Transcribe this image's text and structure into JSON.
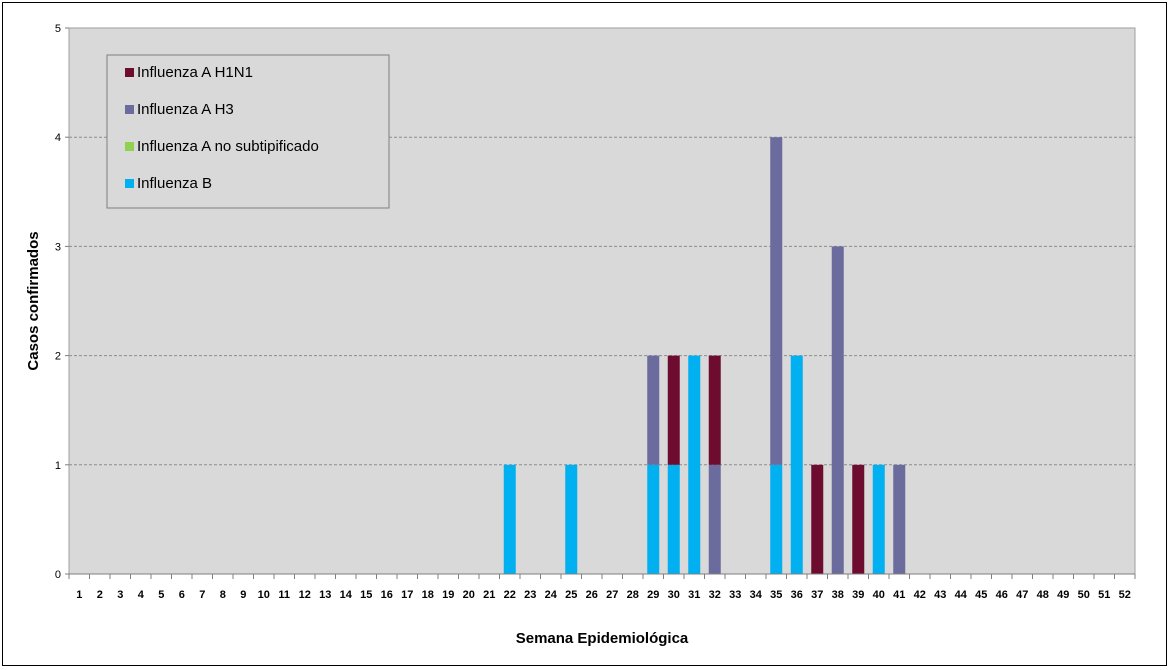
{
  "chart_data": {
    "type": "bar",
    "stacked": true,
    "title": "",
    "xlabel": "Semana Epidemiológica",
    "ylabel": "Casos confirmados",
    "ylim": [
      0,
      5
    ],
    "yticks": [
      0,
      1,
      2,
      3,
      4,
      5
    ],
    "grid": true,
    "legend_position": "top-left",
    "categories": [
      "1",
      "2",
      "3",
      "4",
      "5",
      "6",
      "7",
      "8",
      "9",
      "10",
      "11",
      "12",
      "13",
      "14",
      "15",
      "16",
      "17",
      "18",
      "19",
      "20",
      "21",
      "22",
      "23",
      "24",
      "25",
      "26",
      "27",
      "28",
      "29",
      "30",
      "31",
      "32",
      "33",
      "34",
      "35",
      "36",
      "37",
      "38",
      "39",
      "40",
      "41",
      "42",
      "43",
      "44",
      "45",
      "46",
      "47",
      "48",
      "49",
      "50",
      "51",
      "52"
    ],
    "series": [
      {
        "name": "Influenza B",
        "color": "#00B0F0",
        "values": [
          0,
          0,
          0,
          0,
          0,
          0,
          0,
          0,
          0,
          0,
          0,
          0,
          0,
          0,
          0,
          0,
          0,
          0,
          0,
          0,
          0,
          1,
          0,
          0,
          1,
          0,
          0,
          0,
          1,
          1,
          2,
          0,
          0,
          0,
          1,
          2,
          0,
          0,
          0,
          1,
          0,
          0,
          0,
          0,
          0,
          0,
          0,
          0,
          0,
          0,
          0,
          0
        ]
      },
      {
        "name": "Influenza A no subtipificado",
        "color": "#92D050",
        "values": [
          0,
          0,
          0,
          0,
          0,
          0,
          0,
          0,
          0,
          0,
          0,
          0,
          0,
          0,
          0,
          0,
          0,
          0,
          0,
          0,
          0,
          0,
          0,
          0,
          0,
          0,
          0,
          0,
          0,
          0,
          0,
          0,
          0,
          0,
          0,
          0,
          0,
          0,
          0,
          0,
          0,
          0,
          0,
          0,
          0,
          0,
          0,
          0,
          0,
          0,
          0,
          0
        ]
      },
      {
        "name": "Influenza A H3",
        "color": "#6B6B9E",
        "values": [
          0,
          0,
          0,
          0,
          0,
          0,
          0,
          0,
          0,
          0,
          0,
          0,
          0,
          0,
          0,
          0,
          0,
          0,
          0,
          0,
          0,
          0,
          0,
          0,
          0,
          0,
          0,
          0,
          1,
          0,
          0,
          1,
          0,
          0,
          3,
          0,
          0,
          3,
          0,
          0,
          1,
          0,
          0,
          0,
          0,
          0,
          0,
          0,
          0,
          0,
          0,
          0
        ]
      },
      {
        "name": "Influenza A H1N1",
        "color": "#6E0C30",
        "values": [
          0,
          0,
          0,
          0,
          0,
          0,
          0,
          0,
          0,
          0,
          0,
          0,
          0,
          0,
          0,
          0,
          0,
          0,
          0,
          0,
          0,
          0,
          0,
          0,
          0,
          0,
          0,
          0,
          0,
          1,
          0,
          1,
          0,
          0,
          0,
          0,
          1,
          0,
          1,
          0,
          0,
          0,
          0,
          0,
          0,
          0,
          0,
          0,
          0,
          0,
          0,
          0
        ]
      }
    ],
    "legend_order": [
      "Influenza A H1N1",
      "Influenza A H3",
      "Influenza A no subtipificado",
      "Influenza B"
    ]
  }
}
